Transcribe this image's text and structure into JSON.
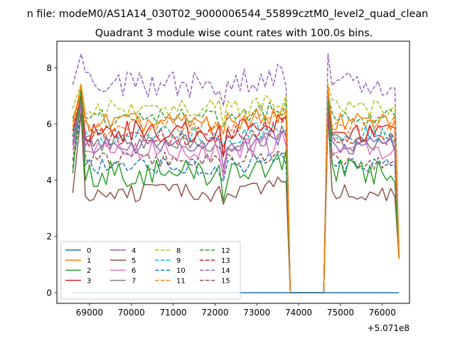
{
  "figure": {
    "suptitle": "n file: modeM0/AS1A14_030T02_9000006544_55899cztM0_level2_quad_clean",
    "x_offset_label": "+5.071e8"
  },
  "chart_data": {
    "type": "line",
    "title": "Quadrant 3 module wise count rates with 100.0s bins.",
    "xlabel": "",
    "ylabel": "",
    "x_offset": 507100000,
    "xlim": [
      68220,
      76650
    ],
    "ylim": [
      -0.38,
      8.95
    ],
    "xticks": [
      69000,
      70000,
      71000,
      72000,
      73000,
      74000,
      75000,
      76000
    ],
    "xtick_labels": [
      "69000",
      "70000",
      "71000",
      "72000",
      "73000",
      "74000",
      "75000",
      "76000"
    ],
    "yticks": [
      0,
      2,
      4,
      6,
      8
    ],
    "ytick_labels": [
      "0",
      "2",
      "4",
      "6",
      "8"
    ],
    "grid": false,
    "legend_position": "lower left",
    "legend_columns": 4,
    "segments": [
      {
        "start": 68600,
        "end": 73800,
        "dt": 100
      },
      {
        "start": 74000,
        "end": 74600,
        "dt": 100
      },
      {
        "start": 74700,
        "end": 76400,
        "dt": 100
      }
    ],
    "series": [
      {
        "name": "0",
        "color": "#1f77b4",
        "dash": false,
        "level": 0.0,
        "peak": 0.0,
        "spread": 0.0
      },
      {
        "name": "1",
        "color": "#ff7f0e",
        "dash": false,
        "level": 6.05,
        "peak": 7.35,
        "spread": 0.22
      },
      {
        "name": "2",
        "color": "#2ca02c",
        "dash": false,
        "level": 4.25,
        "peak": 7.25,
        "spread": 0.3
      },
      {
        "name": "3",
        "color": "#d62728",
        "dash": false,
        "level": 5.75,
        "peak": 7.0,
        "spread": 0.25
      },
      {
        "name": "4",
        "color": "#9467bd",
        "dash": false,
        "level": 5.25,
        "peak": 6.7,
        "spread": 0.2
      },
      {
        "name": "5",
        "color": "#8c564b",
        "dash": false,
        "level": 3.55,
        "peak": 6.4,
        "spread": 0.2
      },
      {
        "name": "6",
        "color": "#e377c2",
        "dash": false,
        "level": 5.05,
        "peak": 6.6,
        "spread": 0.25
      },
      {
        "name": "7",
        "color": "#7f7f7f",
        "dash": false,
        "level": 5.35,
        "peak": 6.9,
        "spread": 0.2
      },
      {
        "name": "8",
        "color": "#bcbd22",
        "dash": true,
        "level": 6.55,
        "peak": 7.45,
        "spread": 0.22
      },
      {
        "name": "9",
        "color": "#17becf",
        "dash": true,
        "level": 5.6,
        "peak": 7.0,
        "spread": 0.22
      },
      {
        "name": "10",
        "color": "#1f77b4",
        "dash": true,
        "level": 4.45,
        "peak": 6.5,
        "spread": 0.2
      },
      {
        "name": "11",
        "color": "#ff7f0e",
        "dash": true,
        "level": 5.9,
        "peak": 7.2,
        "spread": 0.25
      },
      {
        "name": "12",
        "color": "#2ca02c",
        "dash": true,
        "level": 6.2,
        "peak": 7.1,
        "spread": 0.22
      },
      {
        "name": "13",
        "color": "#d62728",
        "dash": true,
        "level": 5.55,
        "peak": 7.0,
        "spread": 0.22
      },
      {
        "name": "14",
        "color": "#9467bd",
        "dash": true,
        "level": 7.4,
        "peak": 8.5,
        "spread": 0.3
      },
      {
        "name": "15",
        "color": "#8c564b",
        "dash": true,
        "level": 4.7,
        "peak": 6.8,
        "spread": 0.2
      }
    ]
  }
}
